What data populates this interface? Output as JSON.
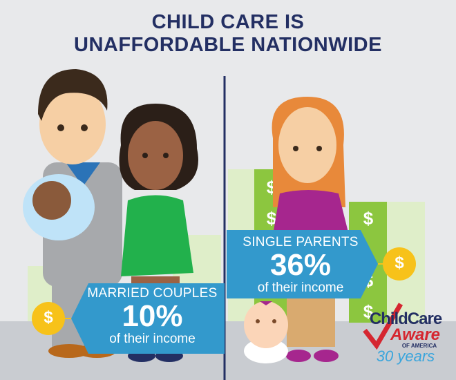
{
  "title": {
    "line1": "CHILD CARE IS",
    "line2": "UNAFFORDABLE NATIONWIDE"
  },
  "married": {
    "label": "MARRIED COUPLES",
    "percent": "10%",
    "sub": "of their income"
  },
  "single": {
    "label": "SINGLE PARENTS",
    "percent": "36%",
    "sub": "of their income"
  },
  "coin_symbol": "$",
  "logo": {
    "line1": "ChildCare",
    "line2": "Aware",
    "line3": "OF AMERICA",
    "line4": "30 years"
  },
  "colors": {
    "navy": "#232f63",
    "blue": "#3399cc",
    "green": "#8cc63f",
    "coin": "#f7c21a",
    "red": "#d52630"
  }
}
